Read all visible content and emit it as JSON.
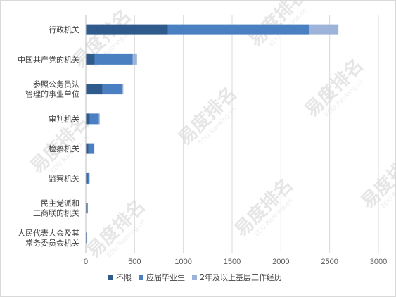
{
  "chart_data": {
    "type": "bar",
    "orientation": "horizontal",
    "stacked": true,
    "categories": [
      "行政机关",
      "中国共产党的机关",
      "参照公务员法管理的事业单位",
      "审判机关",
      "检察机关",
      "监察机关",
      "民主党派和工商联的机关",
      "人民代表大会及其常务委员会机关"
    ],
    "category_lines": [
      [
        "行政机关"
      ],
      [
        "中国共产党的机关"
      ],
      [
        "参照公务员法",
        "管理的事业单位"
      ],
      [
        "审判机关"
      ],
      [
        "检察机关"
      ],
      [
        "监察机关"
      ],
      [
        "民主党派和",
        "工商联的机关"
      ],
      [
        "人民代表大会及其",
        "常务委员会机关"
      ]
    ],
    "series": [
      {
        "name": "不限",
        "color": "#2e5a8c",
        "values": [
          840,
          90,
          170,
          40,
          28,
          18,
          10,
          7
        ]
      },
      {
        "name": "应届毕业生",
        "color": "#4a7fc1",
        "values": [
          1450,
          390,
          200,
          95,
          55,
          18,
          10,
          6
        ]
      },
      {
        "name": "2年及以上基层工作经历",
        "color": "#9db3d9",
        "values": [
          300,
          45,
          15,
          8,
          5,
          4,
          2,
          2
        ]
      }
    ],
    "xlim": [
      0,
      3000
    ],
    "xticks": [
      "0",
      "500",
      "1000",
      "1500",
      "2000",
      "2500",
      "3000"
    ],
    "grid": true,
    "legend_position": "bottom"
  },
  "watermark": {
    "brand": "易度排名",
    "sub": "EDU Ranking.cn"
  }
}
